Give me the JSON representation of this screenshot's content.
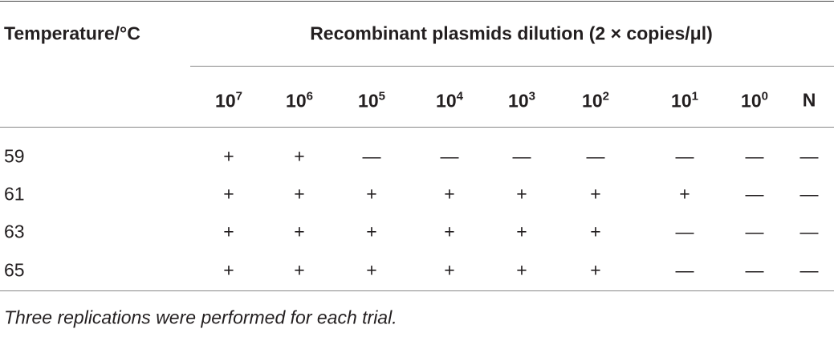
{
  "table": {
    "header": {
      "temperature": "Temperature/°C",
      "dilution": "Recombinant plasmids dilution (2 × copies/μl)"
    },
    "columns": [
      {
        "base": "10",
        "exp": "7"
      },
      {
        "base": "10",
        "exp": "6"
      },
      {
        "base": "10",
        "exp": "5"
      },
      {
        "base": "10",
        "exp": "4"
      },
      {
        "base": "10",
        "exp": "3"
      },
      {
        "base": "10",
        "exp": "2"
      },
      {
        "base": "10",
        "exp": "1"
      },
      {
        "base": "10",
        "exp": "0"
      },
      {
        "base": "N"
      }
    ],
    "rows": [
      [
        "59",
        "+",
        "+",
        "—",
        "—",
        "—",
        "—",
        "—",
        "—",
        "—"
      ],
      [
        "61",
        "+",
        "+",
        "+",
        "+",
        "+",
        "+",
        "+",
        "—",
        "—"
      ],
      [
        "63",
        "+",
        "+",
        "+",
        "+",
        "+",
        "+",
        "—",
        "—",
        "—"
      ],
      [
        "65",
        "+",
        "+",
        "+",
        "+",
        "+",
        "+",
        "—",
        "—",
        "—"
      ]
    ]
  },
  "footnote": "Three replications were performed for each trial."
}
